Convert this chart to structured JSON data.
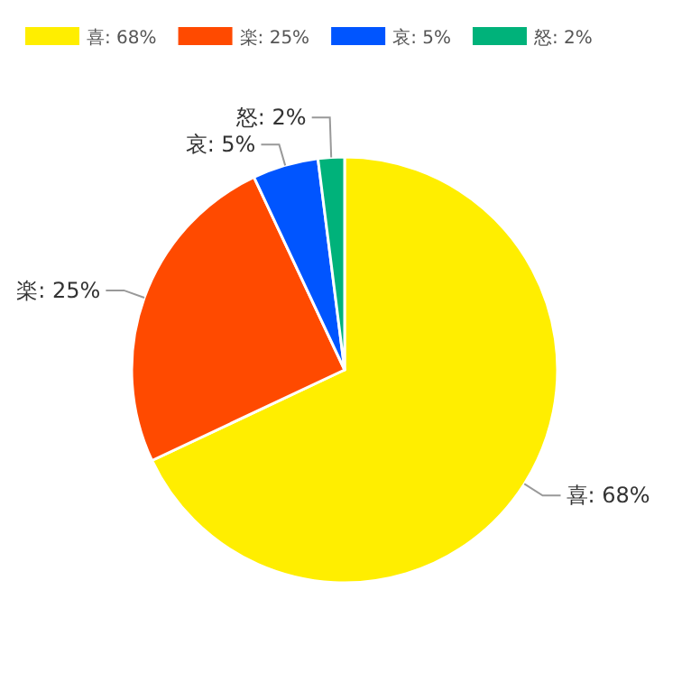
{
  "chart_data": {
    "type": "pie",
    "legend": "top",
    "categories": [
      "喜",
      "楽",
      "哀",
      "怒"
    ],
    "values": [
      68,
      25,
      5,
      2
    ],
    "value_labels": [
      "68%",
      "25%",
      "5%",
      "2%"
    ],
    "colors": [
      "#ffee00",
      "#ff4a00",
      "#0055ff",
      "#00b27a"
    ]
  }
}
